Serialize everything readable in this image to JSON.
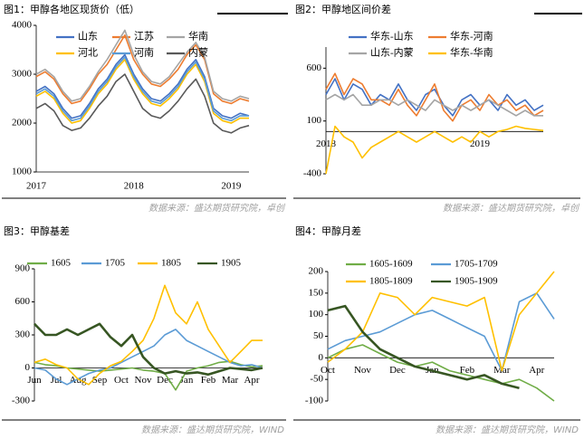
{
  "chart_data": [
    {
      "type": "line",
      "title": "图1：甲醇各地区现货价（低）",
      "source": "数据来源：盛达期货研究院，卓创",
      "categories": [
        "2017",
        null,
        null,
        null,
        null,
        null,
        null,
        null,
        null,
        null,
        null,
        "2018",
        null,
        null,
        null,
        null,
        null,
        null,
        null,
        null,
        null,
        null,
        "2019",
        null,
        null
      ],
      "ylim": [
        1000,
        4000
      ],
      "yticks": [
        1000,
        2000,
        3000,
        4000
      ],
      "series": [
        {
          "name": "山东",
          "color": "#4472c4",
          "values": [
            2650,
            2750,
            2600,
            2300,
            2100,
            2150,
            2400,
            2700,
            2900,
            3200,
            3400,
            3000,
            2700,
            2500,
            2450,
            2600,
            2800,
            3100,
            3300,
            2950,
            2300,
            2150,
            2100,
            2200,
            2150
          ]
        },
        {
          "name": "江苏",
          "color": "#ed7d31",
          "values": [
            2950,
            3050,
            2900,
            2600,
            2400,
            2450,
            2700,
            3000,
            3200,
            3500,
            3800,
            3300,
            3000,
            2800,
            2750,
            2900,
            3100,
            3400,
            3600,
            3300,
            2600,
            2450,
            2400,
            2500,
            2450
          ]
        },
        {
          "name": "华南",
          "color": "#a5a5a5",
          "values": [
            3000,
            3100,
            2950,
            2650,
            2450,
            2500,
            2750,
            3050,
            3300,
            3600,
            3900,
            3400,
            3050,
            2850,
            2800,
            2950,
            3200,
            3450,
            3650,
            3350,
            2650,
            2500,
            2450,
            2550,
            2500
          ]
        },
        {
          "name": "河北",
          "color": "#ffc000",
          "values": [
            2550,
            2650,
            2500,
            2200,
            2000,
            2050,
            2300,
            2600,
            2800,
            3100,
            3300,
            2900,
            2600,
            2400,
            2350,
            2500,
            2700,
            3000,
            3200,
            2850,
            2200,
            2050,
            2000,
            2100,
            2100
          ]
        },
        {
          "name": "河南",
          "color": "#5b9bd5",
          "values": [
            2600,
            2700,
            2550,
            2250,
            2050,
            2100,
            2350,
            2650,
            2850,
            3150,
            3350,
            2950,
            2650,
            2450,
            2400,
            2550,
            2750,
            3050,
            3250,
            2900,
            2250,
            2100,
            2050,
            2150,
            2150
          ]
        },
        {
          "name": "内蒙",
          "color": "#595959",
          "values": [
            2300,
            2400,
            2250,
            1950,
            1850,
            1900,
            2100,
            2350,
            2550,
            2850,
            3000,
            2650,
            2300,
            2150,
            2100,
            2250,
            2450,
            2700,
            2900,
            2550,
            2000,
            1850,
            1800,
            1900,
            1950
          ]
        }
      ]
    },
    {
      "type": "line",
      "title": "图2：甲醇地区间价差",
      "source": "数据来源：盛达期货研究院，卓创",
      "categories": [
        "2018",
        null,
        null,
        null,
        null,
        null,
        null,
        null,
        null,
        null,
        null,
        null,
        null,
        null,
        null,
        null,
        null,
        "2019",
        null,
        null,
        null,
        null,
        null,
        null,
        null
      ],
      "ylim": [
        -400,
        800
      ],
      "yticks": [
        -400,
        100,
        600
      ],
      "series": [
        {
          "name": "华东-山东",
          "color": "#4472c4",
          "values": [
            350,
            500,
            300,
            450,
            400,
            250,
            350,
            300,
            450,
            300,
            200,
            350,
            400,
            250,
            150,
            300,
            350,
            250,
            300,
            200,
            350,
            250,
            300,
            200,
            250
          ]
        },
        {
          "name": "华东-河南",
          "color": "#ed7d31",
          "values": [
            400,
            550,
            350,
            500,
            450,
            300,
            300,
            250,
            400,
            250,
            150,
            300,
            450,
            200,
            100,
            250,
            300,
            200,
            350,
            250,
            300,
            200,
            250,
            150,
            200
          ]
        },
        {
          "name": "山东-内蒙",
          "color": "#a5a5a5",
          "values": [
            300,
            350,
            300,
            350,
            250,
            250,
            300,
            300,
            250,
            300,
            250,
            200,
            300,
            250,
            200,
            250,
            200,
            250,
            300,
            250,
            200,
            150,
            200,
            150,
            150
          ]
        },
        {
          "name": "华东-华南",
          "color": "#ffc000",
          "values": [
            -400,
            50,
            -50,
            -100,
            -250,
            -150,
            -100,
            -50,
            0,
            -50,
            -100,
            -50,
            0,
            -50,
            -100,
            -50,
            -100,
            0,
            -50,
            0,
            20,
            50,
            30,
            20,
            10
          ]
        }
      ]
    },
    {
      "type": "line",
      "title": "图3：甲醇基差",
      "source": "数据来源：盛达期货研究院，WIND",
      "categories": [
        "Jun",
        null,
        "Jul",
        null,
        "Aug",
        null,
        "Sep",
        null,
        "Oct",
        null,
        "Nov",
        null,
        "Dec",
        null,
        "Jan",
        null,
        "Feb",
        null,
        "Mar",
        null,
        "Apr",
        null
      ],
      "ylim": [
        -300,
        900
      ],
      "yticks": [
        -300,
        0,
        300,
        600,
        900
      ],
      "series": [
        {
          "name": "1605",
          "color": "#70ad47",
          "values": [
            50,
            30,
            20,
            0,
            -10,
            -20,
            -30,
            -20,
            -10,
            0,
            -20,
            -30,
            -50,
            -200,
            -30,
            0,
            20,
            50,
            60,
            30,
            10,
            20
          ]
        },
        {
          "name": "1705",
          "color": "#5b9bd5",
          "values": [
            0,
            -20,
            -100,
            -150,
            -100,
            -50,
            -20,
            0,
            50,
            100,
            150,
            200,
            300,
            350,
            250,
            200,
            150,
            100,
            50,
            20,
            30,
            0
          ]
        },
        {
          "name": "1805",
          "color": "#ffc000",
          "values": [
            50,
            80,
            30,
            0,
            -100,
            -150,
            -50,
            20,
            60,
            150,
            250,
            450,
            750,
            500,
            400,
            600,
            350,
            200,
            50,
            150,
            250,
            250
          ]
        },
        {
          "name": "1905",
          "color": "#375623",
          "values": [
            400,
            300,
            300,
            350,
            300,
            350,
            400,
            280,
            200,
            300,
            100,
            0,
            -50,
            -30,
            -50,
            -40,
            -60,
            -30,
            0,
            -10,
            -20,
            0
          ]
        }
      ]
    },
    {
      "type": "line",
      "title": "图4：甲醇月差",
      "source": "数据来源：盛达期货研究院，WIND",
      "categories": [
        "Oct",
        null,
        "Nov",
        null,
        "Dec",
        null,
        "Jan",
        null,
        "Feb",
        null,
        "Mar",
        null,
        "Apr",
        null
      ],
      "ylim": [
        -100,
        200
      ],
      "yticks": [
        -100,
        -50,
        0,
        50,
        100,
        150,
        200
      ],
      "series": [
        {
          "name": "1605-1609",
          "color": "#70ad47",
          "values": [
            0,
            20,
            30,
            10,
            -10,
            -20,
            -10,
            -30,
            -40,
            -50,
            -60,
            -50,
            -70,
            -100
          ]
        },
        {
          "name": "1705-1709",
          "color": "#5b9bd5",
          "values": [
            20,
            40,
            50,
            60,
            80,
            100,
            110,
            90,
            70,
            50,
            -30,
            130,
            150,
            90
          ]
        },
        {
          "name": "1805-1809",
          "color": "#ffc000",
          "values": [
            -10,
            20,
            60,
            150,
            140,
            100,
            140,
            130,
            120,
            140,
            -30,
            100,
            150,
            200
          ]
        },
        {
          "name": "1905-1909",
          "color": "#375623",
          "values": [
            110,
            120,
            60,
            20,
            0,
            -20,
            -30,
            -40,
            -50,
            -40,
            -60,
            -70,
            null,
            null
          ]
        }
      ]
    }
  ]
}
